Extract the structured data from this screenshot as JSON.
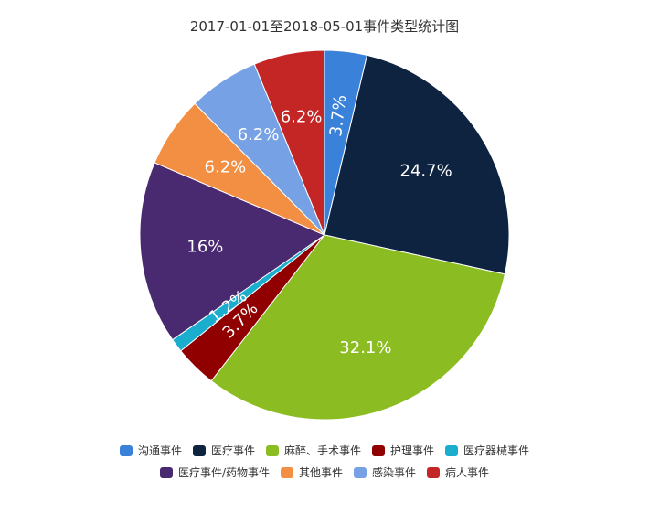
{
  "chart_data": {
    "type": "pie",
    "title": "2017-01-01至2018-05-01事件类型统计图",
    "slices": [
      {
        "name": "沟通事件",
        "value": 3.7,
        "label": "3.7%",
        "color": "#3a82d9"
      },
      {
        "name": "医疗事件",
        "value": 24.7,
        "label": "24.7%",
        "color": "#0e2340"
      },
      {
        "name": "麻醉、手术事件",
        "value": 32.1,
        "label": "32.1%",
        "color": "#8bbc21"
      },
      {
        "name": "护理事件",
        "value": 3.7,
        "label": "3.7%",
        "color": "#910000"
      },
      {
        "name": "医疗器械事件",
        "value": 1.2,
        "label": "1.2%",
        "color": "#1aadce"
      },
      {
        "name": "医疗事件/药物事件",
        "value": 16,
        "label": "16%",
        "color": "#492970"
      },
      {
        "name": "其他事件",
        "value": 6.2,
        "label": "6.2%",
        "color": "#f28f43"
      },
      {
        "name": "感染事件",
        "value": 6.2,
        "label": "6.2%",
        "color": "#77a1e5"
      },
      {
        "name": "病人事件",
        "value": 6.2,
        "label": "6.2%",
        "color": "#c42525"
      }
    ],
    "legend_position": "bottom"
  }
}
